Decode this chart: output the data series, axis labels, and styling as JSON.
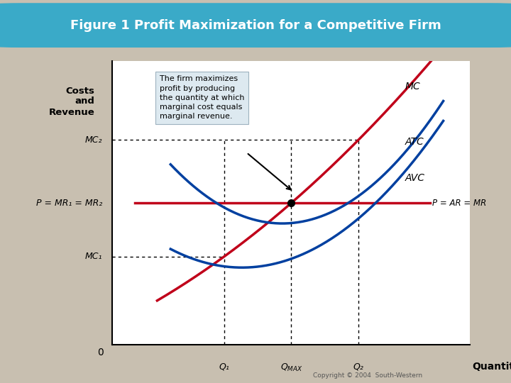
{
  "title": "Figure 1 Profit Maximization for a Competitive Firm",
  "title_bg_color": "#3aaac8",
  "title_text_color": "white",
  "bg_color": "#c8bfb0",
  "plot_bg_color": "white",
  "ylabel": "Costs\nand\nRevenue",
  "xlabel": "Quantity",
  "annotation_text": "The firm maximizes\nprofit by producing\nthe quantity at which\nmarginal cost equals\nmarginal revenue.",
  "curve_color_red": "#c0001a",
  "curve_color_blue": "#0040a0",
  "label_MC": "MC",
  "label_ATC": "ATC",
  "label_AVC": "AVC",
  "label_MR": "P = AR = MR",
  "label_P": "P = MR₁ = MR₂",
  "label_MC2": "MC₂",
  "label_MC1": "MC₁",
  "label_Q1": "Q₁",
  "label_QMAX": "Q",
  "label_QMAX_sub": "MAX",
  "label_Q2": "Q₂",
  "copyright": "Copyright © 2004  South-Western",
  "x_Q1": 2.5,
  "x_QMAX": 4.0,
  "x_Q2": 5.5,
  "y_P": 4.5,
  "y_MC2": 6.5,
  "y_MC1": 2.8,
  "xmin": 0,
  "xmax": 8,
  "ymin": 0,
  "ymax": 9
}
